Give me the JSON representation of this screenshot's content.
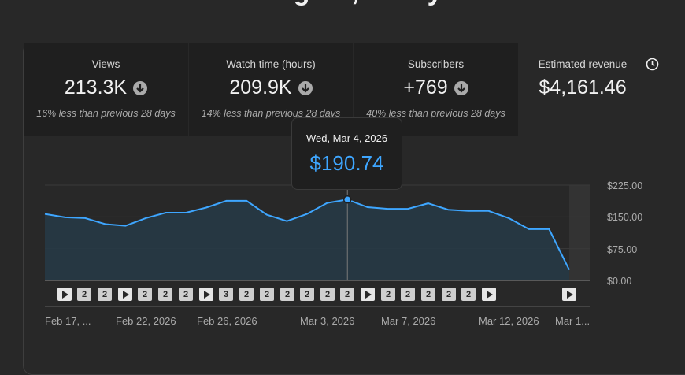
{
  "page": {
    "heading": "…ing … , … …y"
  },
  "metrics": [
    {
      "label": "Views",
      "value": "213.3K",
      "comparison": "16% less than previous 28 days",
      "trend_icon": "down-arrow-icon"
    },
    {
      "label": "Watch time (hours)",
      "value": "209.9K",
      "comparison": "14% less than previous 28 days",
      "trend_icon": "down-arrow-icon"
    },
    {
      "label": "Subscribers",
      "value": "+769",
      "comparison": "40% less than previous 28 days",
      "trend_icon": "down-arrow-icon"
    },
    {
      "label": "Estimated revenue",
      "value": "$4,161.46",
      "info_icon": "clock-icon"
    }
  ],
  "tooltip": {
    "date": "Wed, Mar 4, 2026",
    "value": "$190.74"
  },
  "markers": [
    {
      "type": "play",
      "label": ""
    },
    {
      "type": "count",
      "label": "2"
    },
    {
      "type": "count",
      "label": "2"
    },
    {
      "type": "play",
      "label": ""
    },
    {
      "type": "count",
      "label": "2"
    },
    {
      "type": "count",
      "label": "2"
    },
    {
      "type": "count",
      "label": "2"
    },
    {
      "type": "play",
      "label": ""
    },
    {
      "type": "count",
      "label": "3"
    },
    {
      "type": "count",
      "label": "2"
    },
    {
      "type": "count",
      "label": "2"
    },
    {
      "type": "count",
      "label": "2"
    },
    {
      "type": "count",
      "label": "2"
    },
    {
      "type": "count",
      "label": "2"
    },
    {
      "type": "count",
      "label": "2"
    },
    {
      "type": "play",
      "label": ""
    },
    {
      "type": "count",
      "label": "2"
    },
    {
      "type": "count",
      "label": "2"
    },
    {
      "type": "count",
      "label": "2"
    },
    {
      "type": "count",
      "label": "2"
    },
    {
      "type": "count",
      "label": "2"
    },
    {
      "type": "play",
      "label": ""
    },
    {
      "type": "play",
      "label": ""
    }
  ],
  "chart_data": {
    "type": "area",
    "title": "Estimated revenue",
    "x_tick_labels": [
      "Feb 17, ...",
      "Feb 22, 2026",
      "Feb 26, 2026",
      "Mar 3, 2026",
      "Mar 7, 2026",
      "Mar 12, 2026",
      "Mar 1..."
    ],
    "y_tick_labels": [
      "$225.00",
      "$150.00",
      "$75.00",
      "$0.00"
    ],
    "ylim": [
      0,
      225
    ],
    "series": [
      {
        "name": "Estimated revenue",
        "values": [
          157,
          149,
          147,
          133,
          129,
          147,
          160,
          160,
          172,
          188,
          188,
          155,
          140,
          157,
          183,
          191,
          173,
          169,
          169,
          182,
          167,
          164,
          164,
          147,
          121,
          121,
          25
        ]
      }
    ],
    "highlight_index": 15,
    "colors": {
      "line": "#3ea6ff",
      "fill": "#263a47",
      "grid": "#3a3a3a",
      "axis": "#606060"
    }
  }
}
